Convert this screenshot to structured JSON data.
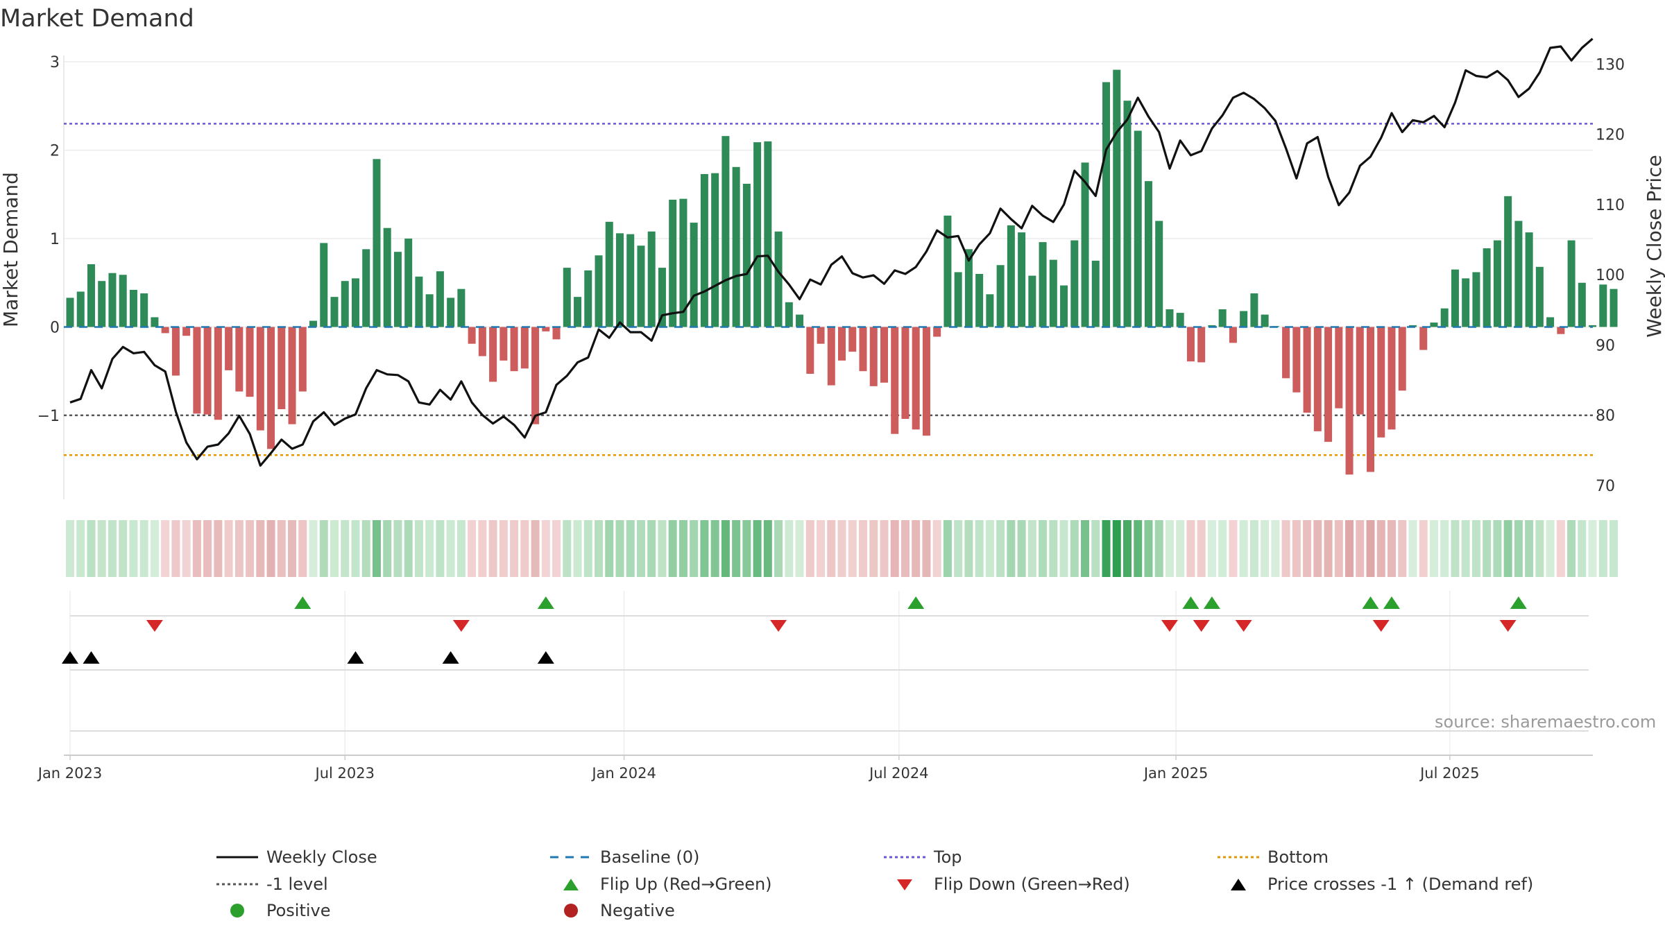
{
  "chart_data": {
    "type": "bar+line",
    "title": "Market Demand",
    "ylabel_left": "Market Demand",
    "ylabel_right": "Weekly Close Price",
    "source": "source: sharemaestro.com",
    "y_left_ticks": [
      "−1",
      "0",
      "1",
      "2",
      "3"
    ],
    "y_left_tick_values": [
      -1,
      0,
      1,
      2,
      3
    ],
    "y_right_ticks": [
      "70",
      "80",
      "90",
      "100",
      "110",
      "120",
      "130"
    ],
    "y_right_tick_values": [
      70,
      80,
      90,
      100,
      110,
      120,
      130
    ],
    "ylim_left": [
      -1.95,
      3.15
    ],
    "ylim_right": [
      68.0,
      132.2
    ],
    "x_ticks": [
      {
        "label": "Jan 2023",
        "week": 1
      },
      {
        "label": "Jul 2023",
        "week": 27
      },
      {
        "label": "Jan 2024",
        "week": 53.4
      },
      {
        "label": "Jul 2024",
        "week": 79.4
      },
      {
        "label": "Jan 2025",
        "week": 105.6
      },
      {
        "label": "Jul 2025",
        "week": 131.5
      }
    ],
    "reference_lines": {
      "top": 2.3,
      "bottom": -1.45,
      "minus_one": -1,
      "baseline": 0
    },
    "colors": {
      "positive_bar": "#2e8b57",
      "negative_bar": "#cd5c5c",
      "price_line": "#111111",
      "baseline": "#1f77b4",
      "top": "#6a5acd",
      "bottom": "#e69500",
      "minus_one": "#555555",
      "flip_up": "#2ca02c",
      "flip_down": "#d62728",
      "cross": "#000000",
      "positive_dot": "#2ca02c",
      "negative_dot": "#b22222"
    },
    "demand": [
      0.33,
      0.4,
      0.71,
      0.52,
      0.61,
      0.59,
      0.42,
      0.38,
      0.11,
      -0.07,
      -0.55,
      -0.1,
      -0.98,
      -0.99,
      -1.05,
      -0.49,
      -0.73,
      -0.79,
      -1.17,
      -1.38,
      -0.93,
      -1.1,
      -0.73,
      0.07,
      0.95,
      0.34,
      0.52,
      0.55,
      0.88,
      1.9,
      1.12,
      0.85,
      1.0,
      0.57,
      0.37,
      0.63,
      0.33,
      0.43,
      -0.19,
      -0.33,
      -0.62,
      -0.38,
      -0.5,
      -0.47,
      -1.1,
      -0.05,
      -0.14,
      0.67,
      0.34,
      0.64,
      0.81,
      1.19,
      1.06,
      1.05,
      0.92,
      1.08,
      0.67,
      1.44,
      1.45,
      1.18,
      1.73,
      1.74,
      2.16,
      1.81,
      1.62,
      2.09,
      2.1,
      1.08,
      0.28,
      0.14,
      -0.53,
      -0.19,
      -0.66,
      -0.38,
      -0.28,
      -0.5,
      -0.67,
      -0.63,
      -1.21,
      -1.04,
      -1.16,
      -1.23,
      -0.11,
      1.26,
      0.62,
      0.88,
      0.6,
      0.37,
      0.7,
      1.15,
      1.07,
      0.58,
      0.96,
      0.76,
      0.47,
      0.98,
      1.86,
      0.75,
      2.77,
      2.91,
      2.56,
      2.22,
      1.65,
      1.2,
      0.2,
      0.16,
      -0.39,
      -0.4,
      0.02,
      0.2,
      -0.18,
      0.18,
      0.38,
      0.14,
      0.01,
      -0.58,
      -0.74,
      -0.97,
      -1.18,
      -1.3,
      -0.92,
      -1.67,
      -0.99,
      -1.64,
      -1.25,
      -1.16,
      -0.72,
      0.02,
      -0.26,
      0.05,
      0.21,
      0.65,
      0.55,
      0.62,
      0.89,
      0.98,
      1.48,
      1.2,
      1.07,
      0.68,
      0.11,
      -0.08,
      0.98,
      0.5,
      0.02,
      0.48,
      0.43
    ],
    "weekly_close": [
      81.8,
      82.3,
      86.4,
      83.8,
      88.0,
      89.7,
      88.8,
      89.0,
      87.1,
      86.2,
      80.5,
      76.1,
      73.7,
      75.5,
      75.8,
      77.4,
      79.9,
      77.3,
      72.8,
      74.6,
      76.5,
      75.2,
      75.8,
      79.1,
      80.4,
      78.6,
      79.5,
      80.1,
      83.8,
      86.4,
      85.8,
      85.7,
      84.8,
      81.8,
      81.5,
      83.6,
      82.2,
      84.8,
      81.8,
      80.0,
      78.8,
      79.8,
      78.6,
      76.8,
      79.9,
      80.4,
      84.3,
      85.6,
      87.5,
      88.2,
      92.2,
      91.0,
      93.2,
      91.8,
      91.8,
      90.6,
      94.2,
      94.5,
      94.7,
      97.0,
      97.6,
      98.4,
      99.2,
      99.8,
      100.1,
      102.6,
      102.7,
      100.4,
      98.6,
      96.5,
      99.3,
      98.6,
      101.4,
      102.6,
      100.2,
      99.6,
      99.9,
      98.7,
      100.6,
      100.1,
      101.1,
      103.3,
      106.3,
      105.3,
      105.5,
      102.0,
      104.3,
      105.9,
      109.4,
      107.9,
      106.6,
      109.8,
      108.4,
      107.5,
      110.0,
      114.8,
      113.2,
      111.2,
      117.8,
      120.3,
      122.1,
      125.2,
      122.5,
      120.3,
      115.1,
      119.1,
      117.0,
      117.6,
      120.8,
      122.7,
      125.2,
      125.9,
      125.0,
      123.7,
      121.9,
      118.0,
      113.7,
      118.7,
      119.6,
      113.9,
      109.9,
      111.7,
      115.5,
      116.8,
      119.5,
      123.0,
      120.3,
      122.0,
      121.7,
      122.6,
      121.0,
      124.5,
      129.1,
      128.3,
      128.1,
      129.0,
      127.7,
      125.3,
      126.5,
      128.8,
      132.3,
      132.5,
      130.5,
      132.3,
      133.6
    ],
    "heat_strip": "one cell per week, green for positive demand and red for negative, shade intensity proportional to magnitude",
    "flip_up_weeks": [
      23,
      46,
      81,
      107,
      109,
      124,
      126,
      138
    ],
    "flip_down_weeks": [
      9,
      38,
      68,
      105,
      108,
      112,
      125,
      137
    ],
    "price_cross_weeks": [
      1,
      3,
      28,
      37,
      46
    ]
  },
  "legend": {
    "items": [
      {
        "label": "Weekly Close",
        "marker": "solid-line"
      },
      {
        "label": "Baseline (0)",
        "marker": "dash-line"
      },
      {
        "label": "Top",
        "marker": "dot-line-top"
      },
      {
        "label": "Bottom",
        "marker": "dot-line-bottom"
      },
      {
        "label": "-1 level",
        "marker": "dot-line-minus-one"
      },
      {
        "label": "Flip Up (Red→Green)",
        "marker": "triangle-up-green"
      },
      {
        "label": "Flip Down (Green→Red)",
        "marker": "triangle-down-red"
      },
      {
        "label": "Price crosses -1 ↑ (Demand ref)",
        "marker": "triangle-up-black"
      },
      {
        "label": "Positive",
        "marker": "dot-green"
      },
      {
        "label": "Negative",
        "marker": "dot-red"
      }
    ]
  }
}
